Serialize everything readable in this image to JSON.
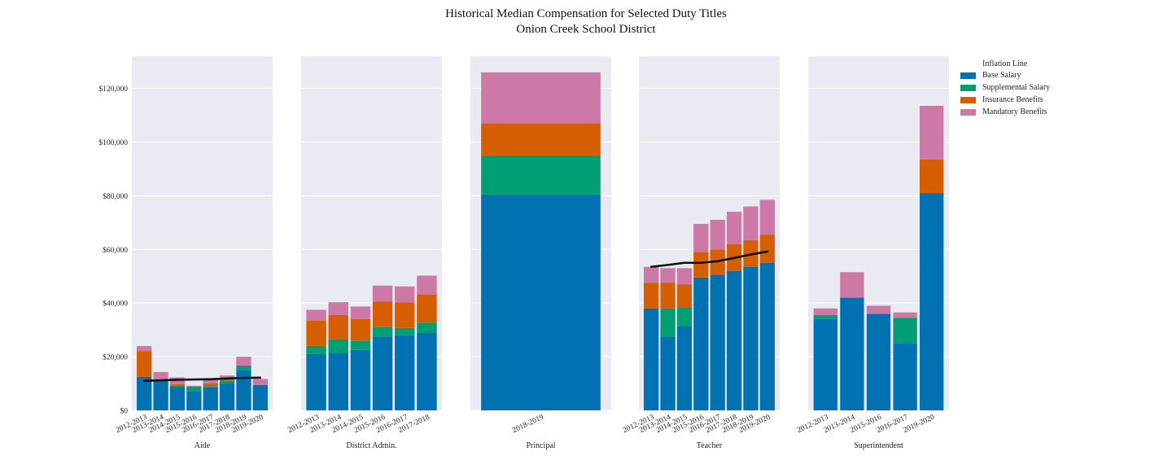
{
  "title_lines": [
    "Historical Median Compensation for Selected Duty Titles",
    "Onion Creek School District"
  ],
  "legend": {
    "title": "Inflation Line",
    "items": [
      {
        "label": "Base Salary",
        "color": "#0072b2"
      },
      {
        "label": "Supplemental Salary",
        "color": "#009e73"
      },
      {
        "label": "Insurance Benefits",
        "color": "#d55e00"
      },
      {
        "label": "Mandatory Benefits",
        "color": "#cc79a7"
      }
    ]
  },
  "chart_data": {
    "type": "bar",
    "stacked": true,
    "shared_y": true,
    "ylim": [
      0,
      132000
    ],
    "y_ticks": [
      0,
      20000,
      40000,
      60000,
      80000,
      100000,
      120000
    ],
    "y_tick_labels": [
      "$0",
      "$20,000",
      "$40,000",
      "$60,000",
      "$80,000",
      "$100,000",
      "$120,000"
    ],
    "grid": true,
    "legend_position": "right",
    "series_names": [
      "Base Salary",
      "Supplemental Salary",
      "Insurance Benefits",
      "Mandatory Benefits"
    ],
    "panels": [
      {
        "xlabel": "Aide",
        "categories": [
          "2012-2013",
          "2013-2014",
          "2014-2015",
          "2015-2016",
          "2016-2017",
          "2017-2018",
          "2018-2019",
          "2019-2020"
        ],
        "base": [
          12500,
          11000,
          8800,
          7200,
          8500,
          10000,
          15000,
          9500
        ],
        "supplemental": [
          0,
          0,
          500,
          1700,
          500,
          1000,
          1700,
          0
        ],
        "insurance": [
          9500,
          500,
          500,
          0,
          1000,
          1000,
          0,
          0
        ],
        "mandatory": [
          2000,
          2800,
          2500,
          300,
          2000,
          1000,
          3300,
          2200
        ],
        "inflation": [
          11000,
          11200,
          11400,
          11500,
          11600,
          11900,
          12100,
          12200
        ]
      },
      {
        "xlabel": "District Admin.",
        "categories": [
          "2012-2013",
          "2013-2014",
          "2014-2015",
          "2015-2016",
          "2016-2017",
          "2017-2018"
        ],
        "base": [
          21000,
          21500,
          22500,
          27500,
          28000,
          29000
        ],
        "supplemental": [
          3000,
          5000,
          3500,
          3500,
          2700,
          3700
        ],
        "insurance": [
          9500,
          9000,
          8000,
          9500,
          9500,
          10500
        ],
        "mandatory": [
          4000,
          4800,
          4700,
          6000,
          6000,
          7000
        ],
        "inflation": null
      },
      {
        "xlabel": "Principal",
        "categories": [
          "2018-2019"
        ],
        "base": [
          80500
        ],
        "supplemental": [
          14500
        ],
        "insurance": [
          12000
        ],
        "mandatory": [
          19000
        ],
        "inflation": null
      },
      {
        "xlabel": "Teacher",
        "categories": [
          "2012-2013",
          "2013-2014",
          "2014-2015",
          "2015-2016",
          "2016-2017",
          "2017-2018",
          "2018-2019",
          "2019-2020"
        ],
        "base": [
          38000,
          27500,
          31500,
          49500,
          50500,
          52000,
          53500,
          55000
        ],
        "supplemental": [
          0,
          10500,
          7000,
          0,
          0,
          0,
          0,
          0
        ],
        "insurance": [
          9500,
          9500,
          8500,
          9500,
          9500,
          10000,
          10000,
          10500
        ],
        "mandatory": [
          6000,
          5500,
          6000,
          10500,
          11000,
          12000,
          12500,
          13000
        ],
        "inflation": [
          53500,
          54200,
          55000,
          55000,
          55600,
          56800,
          58100,
          59200
        ]
      },
      {
        "xlabel": "Superintendent",
        "categories": [
          "2012-2013",
          "2013-2014",
          "2015-2016",
          "2016-2017",
          "2019-2020"
        ],
        "base": [
          34000,
          42000,
          36000,
          25000,
          81000
        ],
        "supplemental": [
          1500,
          0,
          0,
          9500,
          0
        ],
        "insurance": [
          0,
          0,
          0,
          0,
          12500
        ],
        "mandatory": [
          2500,
          9500,
          3000,
          2000,
          20000
        ],
        "inflation": null
      }
    ]
  }
}
